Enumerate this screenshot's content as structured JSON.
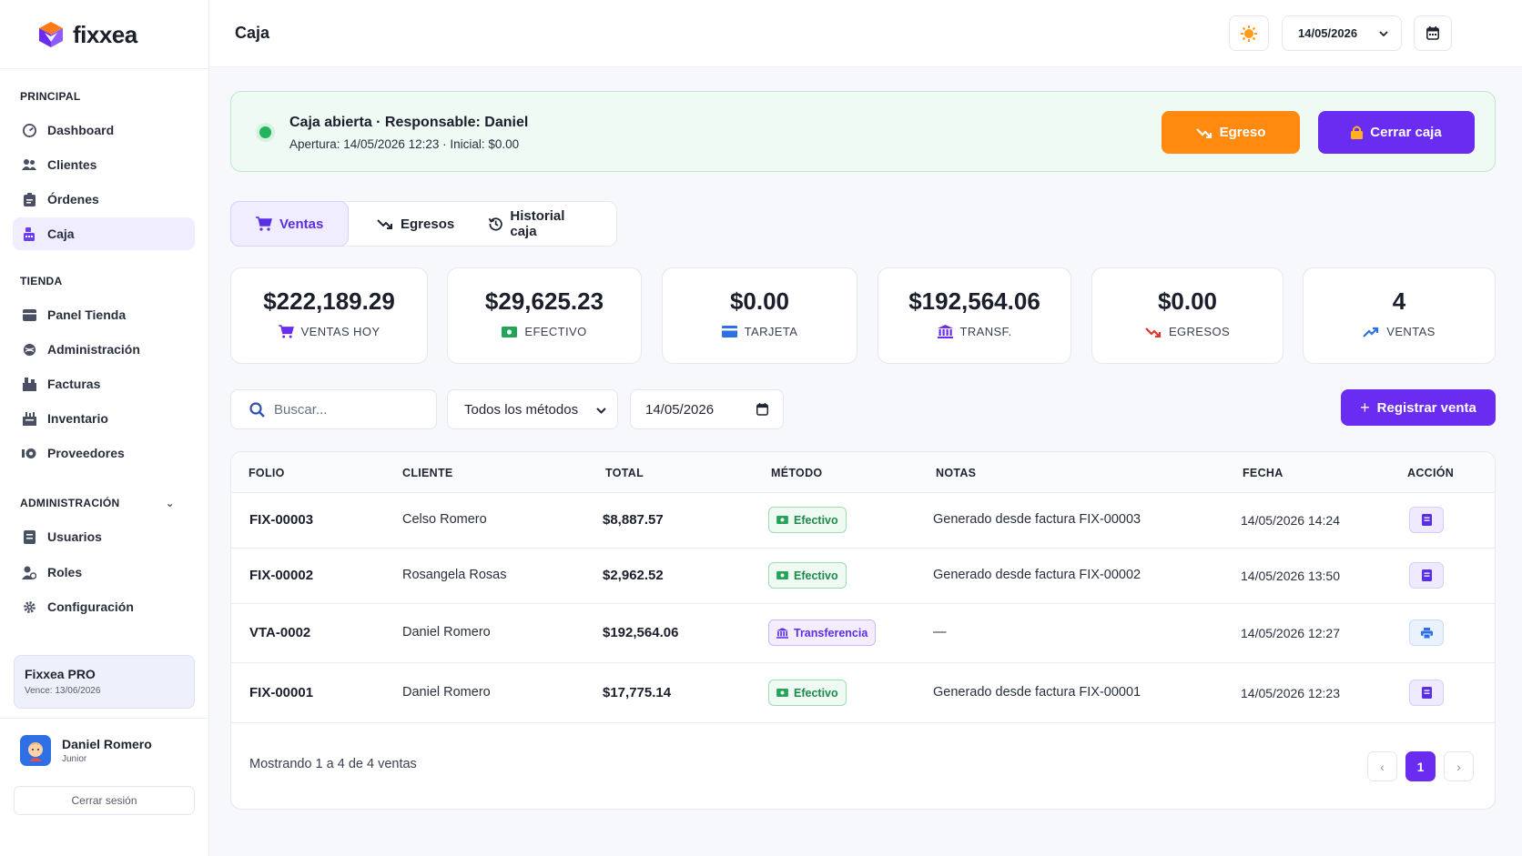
{
  "brand": {
    "name": "fixxea"
  },
  "header": {
    "title": "Caja",
    "date": "14/05/2026"
  },
  "sidebar": {
    "sections": [
      {
        "title": "PRINCIPAL"
      },
      {
        "title": "TIENDA"
      },
      {
        "title": "ADMINISTRACIÓN"
      }
    ],
    "principal": [
      {
        "label": "Dashboard",
        "icon": "dashboard-icon"
      },
      {
        "label": "Clientes",
        "icon": "users-icon"
      },
      {
        "label": "Órdenes",
        "icon": "clipboard-icon"
      },
      {
        "label": "Caja",
        "icon": "cash-register-icon",
        "active": true
      }
    ],
    "tienda": [
      {
        "label": "Panel Tienda",
        "icon": "store-panel-icon"
      },
      {
        "label": "Administración",
        "icon": "admin-icon"
      },
      {
        "label": "Facturas",
        "icon": "invoice-icon"
      },
      {
        "label": "Inventario",
        "icon": "inventory-icon"
      },
      {
        "label": "Proveedores",
        "icon": "suppliers-icon"
      }
    ],
    "admin": [
      {
        "label": "Usuarios",
        "icon": "user-badge-icon"
      },
      {
        "label": "Roles",
        "icon": "roles-icon"
      },
      {
        "label": "Configuración",
        "icon": "gear-icon"
      }
    ],
    "plan": {
      "title": "Fixxea PRO",
      "expires": "Vence: 13/06/2026"
    },
    "user": {
      "name": "Daniel Romero",
      "role": "Junior"
    },
    "logout": "Cerrar sesión"
  },
  "banner": {
    "title": "Caja abierta · Responsable: Daniel",
    "subtitle": "Apertura: 14/05/2026 12:23 · Inicial: $0.00",
    "egreso_label": "Egreso",
    "cerrar_label": "Cerrar caja"
  },
  "tabs": [
    {
      "label": "Ventas",
      "active": true
    },
    {
      "label": "Egresos"
    },
    {
      "label": "Historial caja"
    }
  ],
  "stats": [
    {
      "value": "$222,189.29",
      "label": "VENTAS HOY",
      "icon": "cart-icon",
      "color": "#6a2cf0"
    },
    {
      "value": "$29,625.23",
      "label": "EFECTIVO",
      "icon": "cash-icon",
      "color": "#22a557"
    },
    {
      "value": "$0.00",
      "label": "TARJETA",
      "icon": "card-icon",
      "color": "#2f6fe4"
    },
    {
      "value": "$192,564.06",
      "label": "TRANSF.",
      "icon": "bank-icon",
      "color": "#6a2cf0"
    },
    {
      "value": "$0.00",
      "label": "EGRESOS",
      "icon": "trend-down-icon",
      "color": "#e5322d"
    },
    {
      "value": "4",
      "label": "VENTAS",
      "icon": "trend-up-icon",
      "color": "#2f6fe4"
    }
  ],
  "filters": {
    "search_placeholder": "Buscar...",
    "method": "Todos los métodos",
    "date": "14/05/2026",
    "register_label": "Registrar venta"
  },
  "table": {
    "columns": [
      "FOLIO",
      "CLIENTE",
      "TOTAL",
      "MÉTODO",
      "NOTAS",
      "FECHA",
      "ACCIÓN"
    ],
    "rows": [
      {
        "folio": "FIX-00003",
        "cliente": "Celso Romero",
        "total": "$8,887.57",
        "metodo": "Efectivo",
        "notas": "Generado desde factura FIX-00003",
        "fecha": "14/05/2026 14:24",
        "action_icon": "invoice-icon"
      },
      {
        "folio": "FIX-00002",
        "cliente": "Rosangela Rosas",
        "total": "$2,962.52",
        "metodo": "Efectivo",
        "notas": "Generado desde factura FIX-00002",
        "fecha": "14/05/2026 13:50",
        "action_icon": "invoice-icon"
      },
      {
        "folio": "VTA-0002",
        "cliente": "Daniel Romero",
        "total": "$192,564.06",
        "metodo": "Transferencia",
        "notas": "—",
        "fecha": "14/05/2026 12:27",
        "action_icon": "print-icon"
      },
      {
        "folio": "FIX-00001",
        "cliente": "Daniel Romero",
        "total": "$17,775.14",
        "metodo": "Efectivo",
        "notas": "Generado desde factura FIX-00001",
        "fecha": "14/05/2026 12:23",
        "action_icon": "invoice-icon"
      }
    ],
    "footer": "Mostrando 1 a 4 de 4 ventas",
    "page": "1"
  }
}
